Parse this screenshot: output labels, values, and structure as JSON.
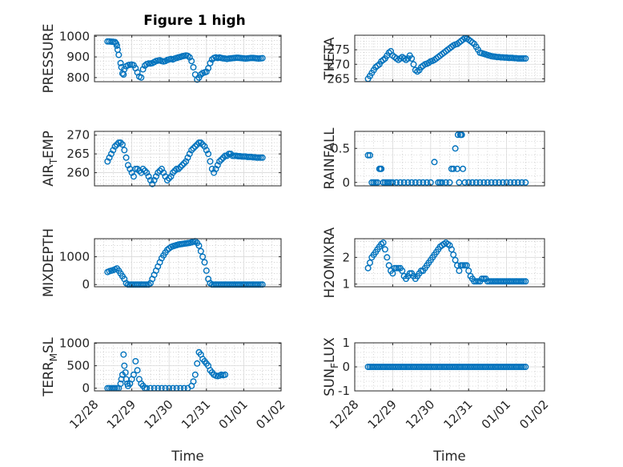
{
  "figure": {
    "title": "Figure 1 high",
    "colors": {
      "marker": "#0072bd",
      "axes": "#262626",
      "grid": "#dadada"
    }
  },
  "chart_data": [
    {
      "type": "scatter",
      "title": "Figure 1 high",
      "ylabel": "PRESSURE",
      "xlabel": "",
      "ylim": [
        780,
        1005
      ],
      "yticks": [
        800,
        900,
        1000
      ],
      "ytick_labels": [
        "800",
        "900",
        "1000"
      ],
      "grid": true,
      "minor_grid": true,
      "x": [
        0.35,
        0.4,
        0.45,
        0.5,
        0.55,
        0.58,
        0.6,
        0.62,
        0.65,
        0.7,
        0.72,
        0.75,
        0.78,
        0.8,
        0.85,
        0.9,
        0.95,
        1.0,
        1.05,
        1.1,
        1.15,
        1.2,
        1.25,
        1.3,
        1.35,
        1.4,
        1.45,
        1.5,
        1.55,
        1.6,
        1.65,
        1.7,
        1.75,
        1.8,
        1.85,
        1.9,
        1.95,
        2.0,
        2.05,
        2.1,
        2.15,
        2.2,
        2.25,
        2.3,
        2.35,
        2.4,
        2.45,
        2.5,
        2.55,
        2.6,
        2.65,
        2.7,
        2.75,
        2.8,
        2.85,
        2.9,
        2.95,
        3.0,
        3.05,
        3.1,
        3.15,
        3.2,
        3.25,
        3.3,
        3.35,
        3.4,
        3.45,
        3.5,
        3.55,
        3.6,
        3.65,
        3.7,
        3.75,
        3.8,
        3.85,
        3.9,
        3.95,
        4.0,
        4.05,
        4.1,
        4.15,
        4.2,
        4.25,
        4.3,
        4.35,
        4.4,
        4.45,
        4.5
      ],
      "y": [
        975,
        975,
        974,
        973,
        972,
        965,
        955,
        935,
        910,
        870,
        850,
        820,
        815,
        840,
        855,
        860,
        862,
        863,
        860,
        845,
        825,
        805,
        800,
        840,
        858,
        865,
        868,
        868,
        870,
        875,
        880,
        882,
        884,
        880,
        878,
        880,
        885,
        888,
        890,
        888,
        892,
        895,
        898,
        900,
        903,
        905,
        907,
        905,
        898,
        880,
        850,
        815,
        790,
        800,
        815,
        822,
        825,
        828,
        845,
        870,
        888,
        895,
        898,
        895,
        897,
        895,
        893,
        892,
        890,
        892,
        893,
        894,
        895,
        896,
        896,
        895,
        894,
        893,
        892,
        893,
        894,
        895,
        895,
        894,
        893,
        892,
        893,
        894
      ]
    },
    {
      "type": "scatter",
      "ylabel": "THETA",
      "xlabel": "",
      "ylim": [
        264,
        280
      ],
      "yticks": [
        265,
        270,
        275
      ],
      "ytick_labels": [
        "265",
        "270",
        "275"
      ],
      "grid": true,
      "minor_grid": true,
      "x": [
        0.35,
        0.4,
        0.45,
        0.5,
        0.55,
        0.6,
        0.65,
        0.7,
        0.75,
        0.8,
        0.85,
        0.9,
        0.95,
        1.0,
        1.05,
        1.1,
        1.15,
        1.2,
        1.25,
        1.3,
        1.35,
        1.4,
        1.45,
        1.5,
        1.55,
        1.6,
        1.65,
        1.7,
        1.75,
        1.8,
        1.85,
        1.9,
        1.95,
        2.0,
        2.05,
        2.1,
        2.15,
        2.2,
        2.25,
        2.3,
        2.35,
        2.4,
        2.45,
        2.5,
        2.55,
        2.6,
        2.65,
        2.7,
        2.75,
        2.8,
        2.85,
        2.9,
        2.95,
        3.0,
        3.05,
        3.1,
        3.15,
        3.2,
        3.25,
        3.3,
        3.35,
        3.4,
        3.45,
        3.5,
        3.55,
        3.6,
        3.65,
        3.7,
        3.75,
        3.8,
        3.85,
        3.9,
        3.95,
        4.0,
        4.05,
        4.1,
        4.15,
        4.2,
        4.25,
        4.3,
        4.35,
        4.4,
        4.45,
        4.5
      ],
      "y": [
        265,
        266,
        267,
        268,
        269,
        269.5,
        270,
        271,
        271.5,
        272,
        273,
        274,
        274.5,
        273,
        272.5,
        272,
        271.5,
        272,
        272.5,
        272,
        271.5,
        272,
        273,
        272,
        270,
        268,
        267.5,
        268,
        269,
        269.5,
        270,
        270.2,
        270.5,
        271,
        271.2,
        271.5,
        272,
        272.5,
        273,
        273.5,
        274,
        274.5,
        275,
        275.5,
        276,
        276.5,
        276.8,
        277,
        277.5,
        278,
        278.5,
        279,
        278.8,
        278.5,
        278,
        277.5,
        277,
        276,
        275,
        274,
        273.8,
        273.6,
        273.4,
        273.2,
        273,
        272.8,
        272.7,
        272.6,
        272.5,
        272.5,
        272.4,
        272.4,
        272.3,
        272.3,
        272.2,
        272.2,
        272.2,
        272.1,
        272.1,
        272,
        272,
        272,
        272,
        272
      ]
    },
    {
      "type": "scatter",
      "ylabel": "AIR_TEMP",
      "xlabel": "",
      "ylim": [
        256.5,
        271
      ],
      "yticks": [
        260,
        265,
        270
      ],
      "ytick_labels": [
        "260",
        "265",
        "270"
      ],
      "grid": true,
      "minor_grid": true,
      "x": [
        0.35,
        0.4,
        0.45,
        0.5,
        0.55,
        0.6,
        0.65,
        0.7,
        0.75,
        0.8,
        0.85,
        0.9,
        0.95,
        1.0,
        1.05,
        1.1,
        1.15,
        1.2,
        1.25,
        1.3,
        1.35,
        1.4,
        1.45,
        1.5,
        1.55,
        1.6,
        1.65,
        1.7,
        1.75,
        1.8,
        1.85,
        1.9,
        1.95,
        2.0,
        2.05,
        2.1,
        2.15,
        2.2,
        2.25,
        2.3,
        2.35,
        2.4,
        2.45,
        2.5,
        2.55,
        2.6,
        2.65,
        2.7,
        2.75,
        2.8,
        2.85,
        2.9,
        2.95,
        3.0,
        3.05,
        3.1,
        3.15,
        3.2,
        3.25,
        3.3,
        3.35,
        3.4,
        3.45,
        3.5,
        3.55,
        3.6,
        3.65,
        3.7,
        3.75,
        3.8,
        3.85,
        3.9,
        3.95,
        4.0,
        4.05,
        4.1,
        4.15,
        4.2,
        4.25,
        4.3,
        4.35,
        4.4,
        4.45,
        4.5
      ],
      "y": [
        263,
        264,
        265,
        266,
        267,
        267.5,
        268,
        268,
        267.5,
        266,
        264,
        262,
        261,
        260,
        259,
        261,
        261,
        260.5,
        260,
        261,
        260.5,
        260,
        259,
        258,
        257,
        258,
        259,
        260,
        260.5,
        261,
        260,
        259,
        258,
        258.5,
        259,
        260,
        260.5,
        261,
        261,
        261.5,
        262,
        262.5,
        263,
        264,
        265,
        266,
        266.5,
        267,
        267.5,
        268,
        268,
        267.5,
        267,
        266,
        265,
        263,
        261,
        260,
        261,
        262,
        263,
        263.5,
        264,
        264.5,
        264.5,
        265,
        265,
        264.5,
        264.5,
        264.5,
        264.4,
        264.4,
        264.3,
        264.3,
        264.3,
        264.2,
        264.2,
        264.2,
        264.1,
        264.1,
        264,
        264,
        264,
        264
      ]
    },
    {
      "type": "scatter",
      "ylabel": "RAINFALL",
      "xlabel": "",
      "ylim": [
        -0.05,
        0.75
      ],
      "yticks": [
        0,
        0.5
      ],
      "ytick_labels": [
        "0",
        "0.5"
      ],
      "grid": true,
      "minor_grid": true,
      "x": [
        0.35,
        0.4,
        0.45,
        0.5,
        0.55,
        0.6,
        0.65,
        0.68,
        0.7,
        0.75,
        0.8,
        0.85,
        0.9,
        0.95,
        1.0,
        1.1,
        1.2,
        1.3,
        1.4,
        1.5,
        1.6,
        1.7,
        1.8,
        1.9,
        2.0,
        2.1,
        2.2,
        2.25,
        2.3,
        2.4,
        2.5,
        2.55,
        2.6,
        2.65,
        2.7,
        2.72,
        2.75,
        2.78,
        2.8,
        2.82,
        2.85,
        2.9,
        3.0,
        3.1,
        3.2,
        3.3,
        3.4,
        3.5,
        3.6,
        3.7,
        3.8,
        3.9,
        4.0,
        4.1,
        4.2,
        4.3,
        4.4,
        4.5
      ],
      "y": [
        0.4,
        0.4,
        0,
        0,
        0,
        0,
        0.2,
        0.2,
        0.2,
        0,
        0,
        0,
        0,
        0,
        0,
        0,
        0,
        0,
        0,
        0,
        0,
        0,
        0,
        0,
        0,
        0.3,
        0,
        0,
        0,
        0,
        0,
        0.2,
        0.2,
        0.5,
        0.2,
        0.7,
        0,
        0.7,
        0.7,
        0.7,
        0.2,
        0,
        0,
        0,
        0,
        0,
        0,
        0,
        0,
        0,
        0,
        0,
        0,
        0,
        0,
        0,
        0,
        0
      ]
    },
    {
      "type": "scatter",
      "ylabel": "MIXDEPTH",
      "xlabel": "",
      "ylim": [
        -80,
        1650
      ],
      "yticks": [
        0,
        1000
      ],
      "ytick_labels": [
        "0",
        "1000"
      ],
      "grid": true,
      "minor_grid": true,
      "x": [
        0.35,
        0.4,
        0.45,
        0.5,
        0.55,
        0.6,
        0.65,
        0.7,
        0.75,
        0.8,
        0.85,
        0.9,
        0.95,
        1.0,
        1.05,
        1.1,
        1.15,
        1.2,
        1.25,
        1.3,
        1.35,
        1.4,
        1.45,
        1.5,
        1.55,
        1.6,
        1.65,
        1.7,
        1.75,
        1.8,
        1.85,
        1.9,
        1.95,
        2.0,
        2.05,
        2.1,
        2.15,
        2.2,
        2.25,
        2.3,
        2.35,
        2.4,
        2.45,
        2.5,
        2.55,
        2.6,
        2.65,
        2.7,
        2.75,
        2.8,
        2.85,
        2.9,
        2.95,
        3.0,
        3.05,
        3.1,
        3.15,
        3.2,
        3.25,
        3.3,
        3.35,
        3.4,
        3.45,
        3.5,
        3.55,
        3.6,
        3.65,
        3.7,
        3.75,
        3.8,
        3.85,
        3.9,
        3.95,
        4.0,
        4.05,
        4.1,
        4.15,
        4.2,
        4.25,
        4.3,
        4.35,
        4.4,
        4.45,
        4.5
      ],
      "y": [
        450,
        480,
        500,
        520,
        550,
        580,
        500,
        400,
        300,
        200,
        50,
        0,
        0,
        0,
        0,
        0,
        0,
        0,
        0,
        0,
        0,
        0,
        0,
        50,
        200,
        350,
        500,
        650,
        800,
        950,
        1050,
        1150,
        1250,
        1300,
        1350,
        1380,
        1400,
        1420,
        1440,
        1450,
        1460,
        1470,
        1480,
        1490,
        1500,
        1520,
        1540,
        1560,
        1500,
        1400,
        1200,
        1000,
        800,
        500,
        200,
        50,
        0,
        0,
        0,
        0,
        0,
        0,
        0,
        0,
        0,
        0,
        0,
        0,
        0,
        0,
        0,
        0,
        0,
        0,
        0,
        0,
        0,
        0,
        0,
        0,
        0,
        0,
        0,
        0
      ]
    },
    {
      "type": "scatter",
      "ylabel": "H2OMIXRA",
      "xlabel": "",
      "ylim": [
        0.9,
        2.7
      ],
      "yticks": [
        1,
        2
      ],
      "ytick_labels": [
        "1",
        "2"
      ],
      "grid": true,
      "minor_grid": true,
      "x": [
        0.35,
        0.4,
        0.45,
        0.5,
        0.55,
        0.6,
        0.65,
        0.7,
        0.75,
        0.8,
        0.85,
        0.9,
        0.95,
        1.0,
        1.05,
        1.1,
        1.15,
        1.2,
        1.25,
        1.3,
        1.35,
        1.4,
        1.45,
        1.5,
        1.55,
        1.6,
        1.65,
        1.7,
        1.75,
        1.8,
        1.85,
        1.9,
        1.95,
        2.0,
        2.05,
        2.1,
        2.15,
        2.2,
        2.25,
        2.3,
        2.35,
        2.4,
        2.45,
        2.5,
        2.55,
        2.6,
        2.65,
        2.7,
        2.75,
        2.8,
        2.85,
        2.9,
        2.95,
        3.0,
        3.05,
        3.1,
        3.15,
        3.2,
        3.25,
        3.3,
        3.35,
        3.4,
        3.45,
        3.5,
        3.55,
        3.6,
        3.65,
        3.7,
        3.75,
        3.8,
        3.85,
        3.9,
        3.95,
        4.0,
        4.05,
        4.1,
        4.15,
        4.2,
        4.25,
        4.3,
        4.35,
        4.4,
        4.45,
        4.5
      ],
      "y": [
        1.6,
        1.8,
        2.0,
        2.1,
        2.2,
        2.3,
        2.4,
        2.5,
        2.55,
        2.3,
        2.0,
        1.7,
        1.5,
        1.4,
        1.6,
        1.6,
        1.6,
        1.6,
        1.5,
        1.3,
        1.2,
        1.3,
        1.4,
        1.4,
        1.3,
        1.2,
        1.3,
        1.4,
        1.5,
        1.5,
        1.6,
        1.7,
        1.8,
        1.9,
        2.0,
        2.1,
        2.2,
        2.3,
        2.4,
        2.45,
        2.5,
        2.55,
        2.5,
        2.45,
        2.3,
        2.1,
        1.9,
        1.7,
        1.5,
        1.7,
        1.7,
        1.7,
        1.7,
        1.5,
        1.3,
        1.2,
        1.1,
        1.1,
        1.1,
        1.1,
        1.2,
        1.2,
        1.2,
        1.1,
        1.1,
        1.1,
        1.1,
        1.1,
        1.1,
        1.1,
        1.1,
        1.1,
        1.1,
        1.1,
        1.1,
        1.1,
        1.1,
        1.1,
        1.1,
        1.1,
        1.1,
        1.1,
        1.1,
        1.1
      ]
    },
    {
      "type": "scatter",
      "ylabel": "TERR_MSL",
      "xlabel": "Time",
      "ylim": [
        -60,
        1010
      ],
      "yticks": [
        0,
        500,
        1000
      ],
      "ytick_labels": [
        "0",
        "500",
        "1000"
      ],
      "xticks": [
        0,
        1,
        2,
        3,
        4,
        5
      ],
      "xtick_labels": [
        "12/28",
        "12/29",
        "12/30",
        "12/31",
        "01/01",
        "01/02"
      ],
      "grid": true,
      "minor_grid": true,
      "x": [
        0.35,
        0.4,
        0.45,
        0.5,
        0.55,
        0.6,
        0.65,
        0.7,
        0.72,
        0.75,
        0.78,
        0.8,
        0.83,
        0.85,
        0.88,
        0.9,
        0.95,
        1.0,
        1.05,
        1.1,
        1.15,
        1.2,
        1.25,
        1.3,
        1.35,
        1.4,
        1.5,
        1.6,
        1.7,
        1.8,
        1.9,
        2.0,
        2.1,
        2.2,
        2.3,
        2.4,
        2.5,
        2.6,
        2.65,
        2.7,
        2.75,
        2.8,
        2.85,
        2.9,
        2.95,
        3.0,
        3.05,
        3.1,
        3.15,
        3.2,
        3.25,
        3.3,
        3.35,
        3.4,
        3.45,
        3.5
      ],
      "y": [
        0,
        0,
        0,
        0,
        0,
        0,
        0,
        100,
        200,
        300,
        750,
        500,
        350,
        200,
        100,
        50,
        100,
        200,
        300,
        600,
        400,
        200,
        100,
        50,
        0,
        0,
        0,
        0,
        0,
        0,
        0,
        0,
        0,
        0,
        0,
        0,
        0,
        50,
        150,
        300,
        550,
        800,
        750,
        650,
        600,
        550,
        500,
        400,
        350,
        300,
        280,
        270,
        280,
        300,
        290,
        300
      ]
    },
    {
      "type": "scatter",
      "ylabel": "SUN_FLUX",
      "xlabel": "Time",
      "ylim": [
        -1,
        1
      ],
      "yticks": [
        -1,
        0,
        1
      ],
      "ytick_labels": [
        "-1",
        "0",
        "1"
      ],
      "xticks": [
        0,
        1,
        2,
        3,
        4,
        5
      ],
      "xtick_labels": [
        "12/28",
        "12/29",
        "12/30",
        "12/31",
        "01/01",
        "01/02"
      ],
      "grid": true,
      "minor_grid": true,
      "x": [
        0.35,
        0.4,
        0.45,
        0.5,
        0.55,
        0.6,
        0.65,
        0.7,
        0.75,
        0.8,
        0.85,
        0.9,
        0.95,
        1.0,
        1.05,
        1.1,
        1.15,
        1.2,
        1.25,
        1.3,
        1.35,
        1.4,
        1.45,
        1.5,
        1.55,
        1.6,
        1.65,
        1.7,
        1.75,
        1.8,
        1.85,
        1.9,
        1.95,
        2.0,
        2.05,
        2.1,
        2.15,
        2.2,
        2.25,
        2.3,
        2.35,
        2.4,
        2.45,
        2.5,
        2.55,
        2.6,
        2.65,
        2.7,
        2.75,
        2.8,
        2.85,
        2.9,
        2.95,
        3.0,
        3.05,
        3.1,
        3.15,
        3.2,
        3.25,
        3.3,
        3.35,
        3.4,
        3.45,
        3.5,
        3.55,
        3.6,
        3.65,
        3.7,
        3.75,
        3.8,
        3.85,
        3.9,
        3.95,
        4.0,
        4.05,
        4.1,
        4.15,
        4.2,
        4.25,
        4.3,
        4.35,
        4.4,
        4.45,
        4.5
      ],
      "y": [
        0,
        0,
        0,
        0,
        0,
        0,
        0,
        0,
        0,
        0,
        0,
        0,
        0,
        0,
        0,
        0,
        0,
        0,
        0,
        0,
        0,
        0,
        0,
        0,
        0,
        0,
        0,
        0,
        0,
        0,
        0,
        0,
        0,
        0,
        0,
        0,
        0,
        0,
        0,
        0,
        0,
        0,
        0,
        0,
        0,
        0,
        0,
        0,
        0,
        0,
        0,
        0,
        0,
        0,
        0,
        0,
        0,
        0,
        0,
        0,
        0,
        0,
        0,
        0,
        0,
        0,
        0,
        0,
        0,
        0,
        0,
        0,
        0,
        0,
        0,
        0,
        0,
        0,
        0,
        0,
        0,
        0,
        0,
        0
      ]
    }
  ]
}
